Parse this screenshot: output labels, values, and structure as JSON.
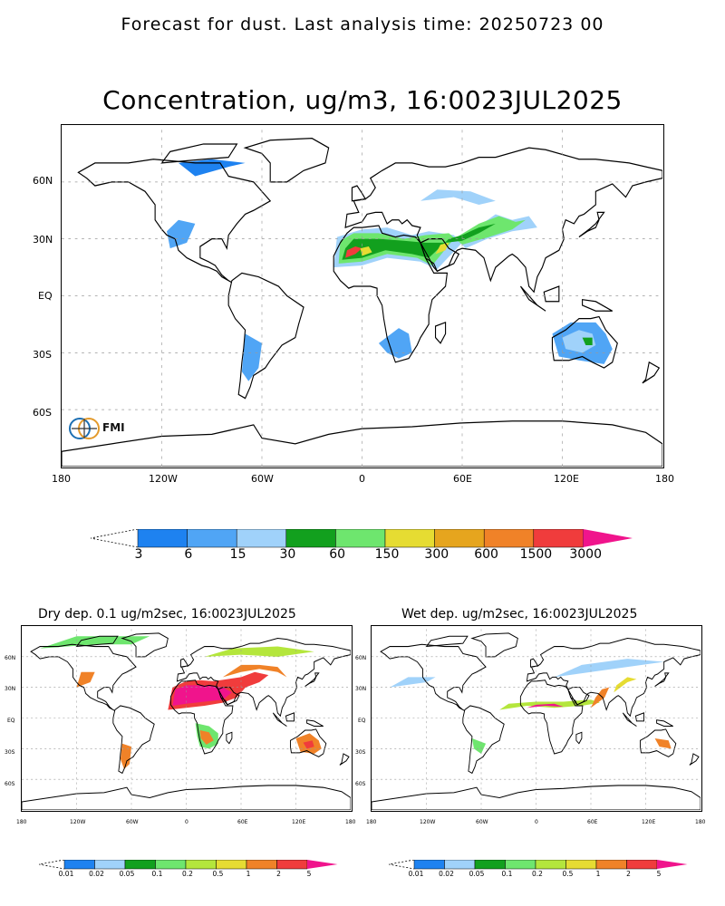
{
  "header": {
    "title": "Forecast for dust. Last analysis time: 20250723 00"
  },
  "main_map": {
    "title": "Concentration, ug/m3, 16:0023JUL2025",
    "lat_labels": [
      "60N",
      "30N",
      "EQ",
      "30S",
      "60S"
    ],
    "lon_labels": [
      "180",
      "120W",
      "60W",
      "0",
      "60E",
      "120E",
      "180"
    ],
    "logo_text": "FMI",
    "colorbar": {
      "levels": [
        "3",
        "6",
        "15",
        "30",
        "60",
        "150",
        "300",
        "600",
        "1500",
        "3000"
      ],
      "colors": [
        "#1e82f0",
        "#50a5f5",
        "#a0d2fa",
        "#12a01e",
        "#6ee66e",
        "#e6dc32",
        "#e6a51e",
        "#f08228",
        "#f03c3c",
        "#f0148c"
      ]
    }
  },
  "dry_map": {
    "title": "Dry dep. 0.1 ug/m2sec, 16:0023JUL2025",
    "lat_labels": [
      "60N",
      "30N",
      "EQ",
      "30S",
      "60S"
    ],
    "lon_labels": [
      "180",
      "120W",
      "60W",
      "0",
      "60E",
      "120E",
      "180"
    ],
    "colorbar": {
      "levels": [
        "0.01",
        "0.02",
        "0.05",
        "0.1",
        "0.2",
        "0.5",
        "1",
        "2",
        "5"
      ],
      "colors": [
        "#1e82f0",
        "#a0d2fa",
        "#12a01e",
        "#6ee66e",
        "#b4e63c",
        "#e6dc32",
        "#f08228",
        "#f03c3c",
        "#f0148c"
      ]
    }
  },
  "wet_map": {
    "title": "Wet dep. ug/m2sec, 16:0023JUL2025",
    "lat_labels": [
      "60N",
      "30N",
      "EQ",
      "30S",
      "60S"
    ],
    "lon_labels": [
      "180",
      "120W",
      "60W",
      "0",
      "60E",
      "120E",
      "180"
    ],
    "colorbar": {
      "levels": [
        "0.01",
        "0.02",
        "0.05",
        "0.1",
        "0.2",
        "0.5",
        "1",
        "2",
        "5"
      ],
      "colors": [
        "#1e82f0",
        "#a0d2fa",
        "#12a01e",
        "#6ee66e",
        "#b4e63c",
        "#e6dc32",
        "#f08228",
        "#f03c3c",
        "#f0148c"
      ]
    }
  }
}
